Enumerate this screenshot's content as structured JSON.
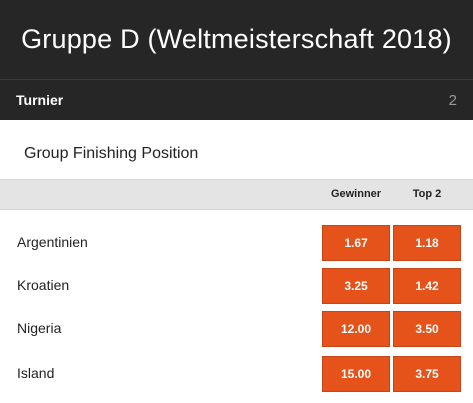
{
  "header": {
    "title": "Gruppe D (Weltmeisterschaft 2018)"
  },
  "tournament": {
    "label": "Turnier",
    "count": "2"
  },
  "market": {
    "title": "Group Finishing Position",
    "columns": [
      "Gewinner",
      "Top 2"
    ],
    "rows": [
      {
        "team": "Argentinien",
        "odds": [
          "1.67",
          "1.18"
        ]
      },
      {
        "team": "Kroatien",
        "odds": [
          "3.25",
          "1.42"
        ]
      },
      {
        "team": "Nigeria",
        "odds": [
          "12.00",
          "3.50"
        ]
      },
      {
        "team": "Island",
        "odds": [
          "15.00",
          "3.75"
        ]
      }
    ]
  },
  "colors": {
    "header_bg": "#262626",
    "odds_button": "#e5531a",
    "column_header_bg": "#e4e4e4"
  }
}
